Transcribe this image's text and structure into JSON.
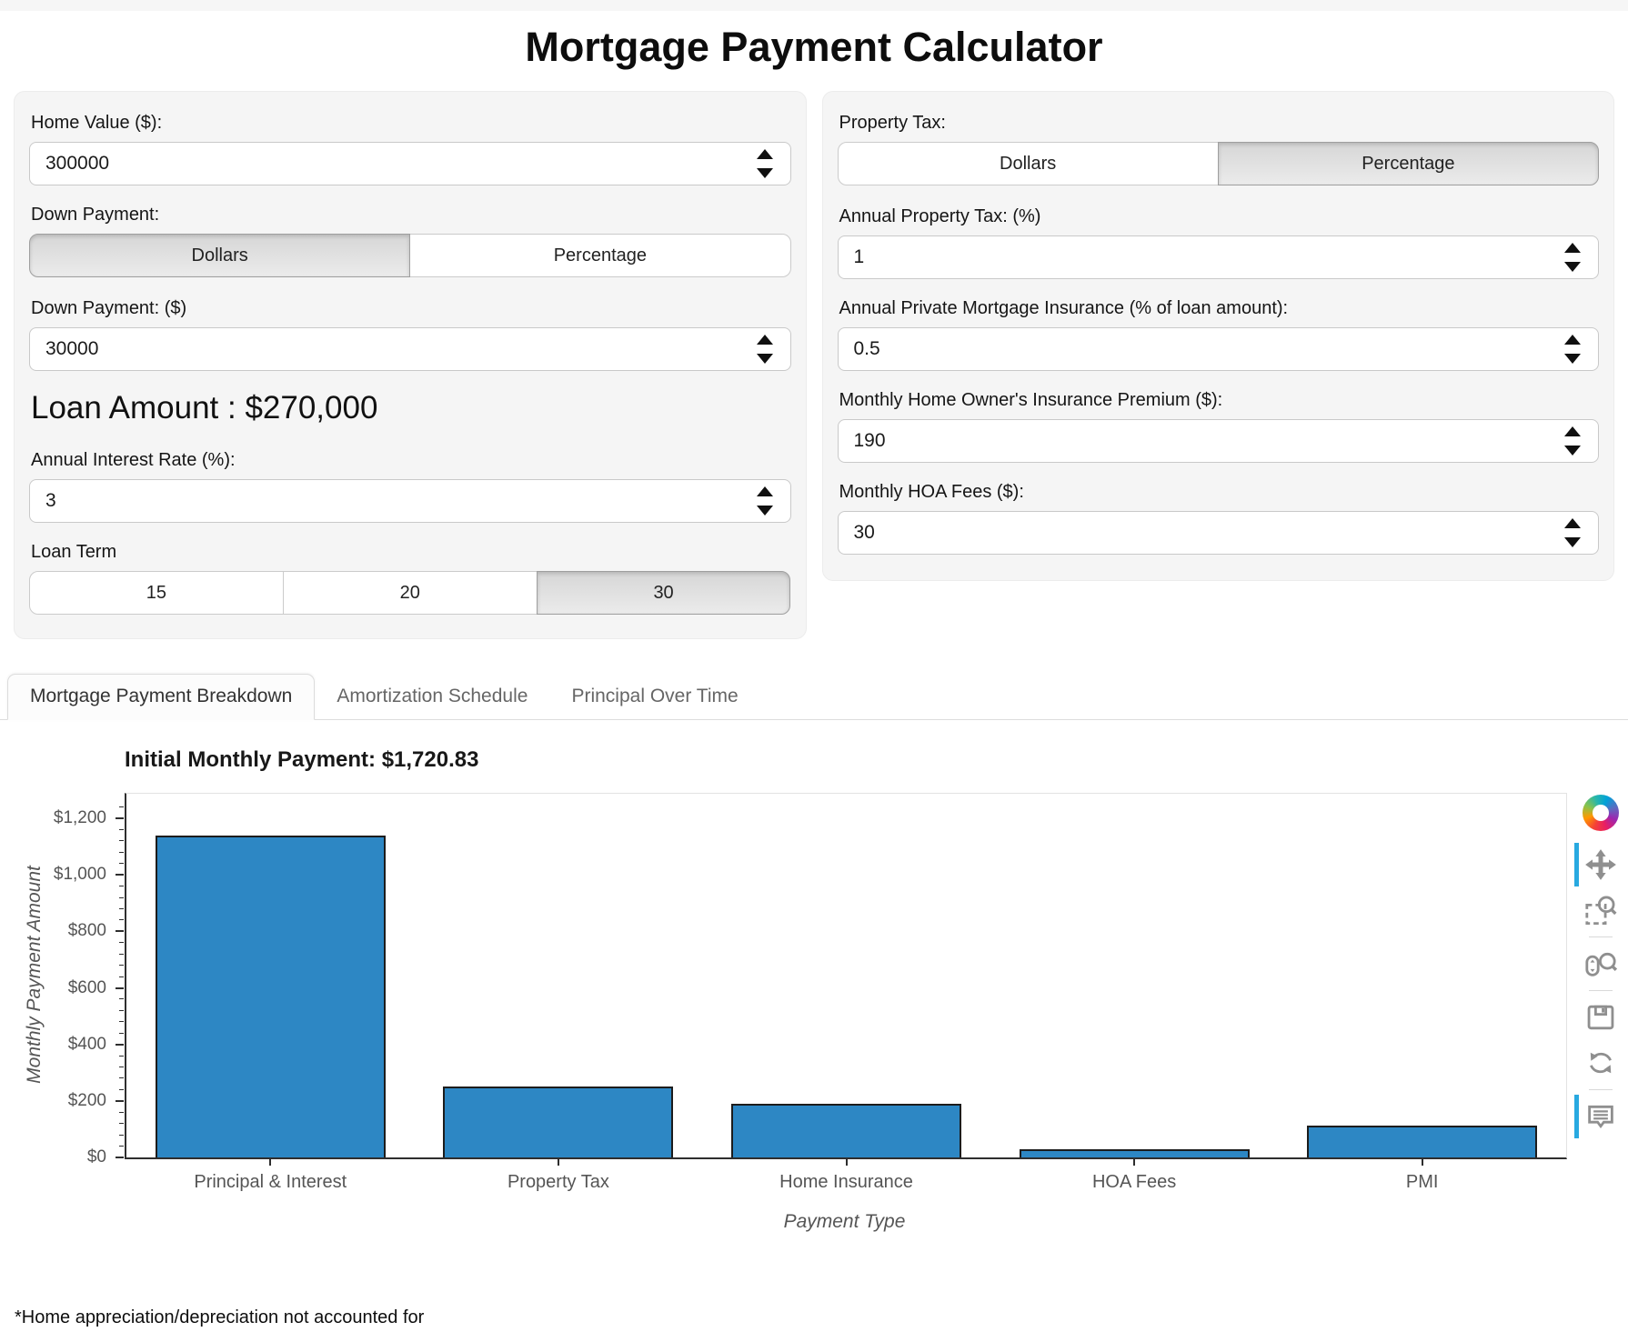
{
  "app": {
    "title": "Mortgage Payment Calculator",
    "footnote": "*Home appreciation/depreciation not accounted for"
  },
  "left_panel": {
    "home_value_label": "Home Value ($):",
    "home_value": "300000",
    "down_payment_label": "Down Payment:",
    "down_payment_toggle": {
      "options": [
        "Dollars",
        "Percentage"
      ],
      "selected": "Dollars"
    },
    "down_payment_amount_label": "Down Payment: ($)",
    "down_payment_amount": "30000",
    "loan_amount_text": "Loan Amount : $270,000",
    "interest_rate_label": "Annual Interest Rate (%):",
    "interest_rate": "3",
    "loan_term_label": "Loan Term",
    "loan_term_options": [
      "15",
      "20",
      "30"
    ],
    "loan_term_selected": "30"
  },
  "right_panel": {
    "property_tax_label": "Property Tax:",
    "property_tax_toggle": {
      "options": [
        "Dollars",
        "Percentage"
      ],
      "selected": "Percentage"
    },
    "annual_property_tax_label": "Annual Property Tax: (%)",
    "annual_property_tax": "1",
    "pmi_label": "Annual Private Mortgage Insurance (% of loan amount):",
    "pmi": "0.5",
    "home_insurance_label": "Monthly Home Owner's Insurance Premium ($):",
    "home_insurance": "190",
    "hoa_label": "Monthly HOA Fees ($):",
    "hoa": "30"
  },
  "tabs": [
    {
      "label": "Mortgage Payment Breakdown",
      "selected": true
    },
    {
      "label": "Amortization Schedule",
      "selected": false
    },
    {
      "label": "Principal Over Time",
      "selected": false
    }
  ],
  "chart_data": {
    "type": "bar",
    "title": "Initial Monthly Payment: $1,720.83",
    "categories": [
      "Principal & Interest",
      "Property Tax",
      "Home Insurance",
      "HOA Fees",
      "PMI"
    ],
    "values": [
      1138.33,
      250,
      190,
      30,
      112.5
    ],
    "xlabel": "Payment Type",
    "ylabel": "Monthly Payment Amount",
    "ylim": [
      0,
      1287
    ],
    "yticks": [
      0,
      200,
      400,
      600,
      800,
      1000,
      1200
    ],
    "ytick_labels": [
      "$0",
      "$200",
      "$400",
      "$600",
      "$800",
      "$1,000",
      "$1,200"
    ],
    "minor_tick_step": 40,
    "grid": false,
    "legend": "none",
    "colors": {
      "bar": "#2d87c4",
      "bar_edge": "#1c1c1c"
    }
  },
  "toolbar": {
    "accent": "#28a9e0",
    "tools": [
      {
        "name": "pan",
        "active": true
      },
      {
        "name": "box-zoom",
        "active": false
      },
      {
        "name": "wheel-zoom",
        "active": false
      },
      {
        "name": "save",
        "active": false
      },
      {
        "name": "reset",
        "active": false
      },
      {
        "name": "hover",
        "active": true
      }
    ]
  }
}
